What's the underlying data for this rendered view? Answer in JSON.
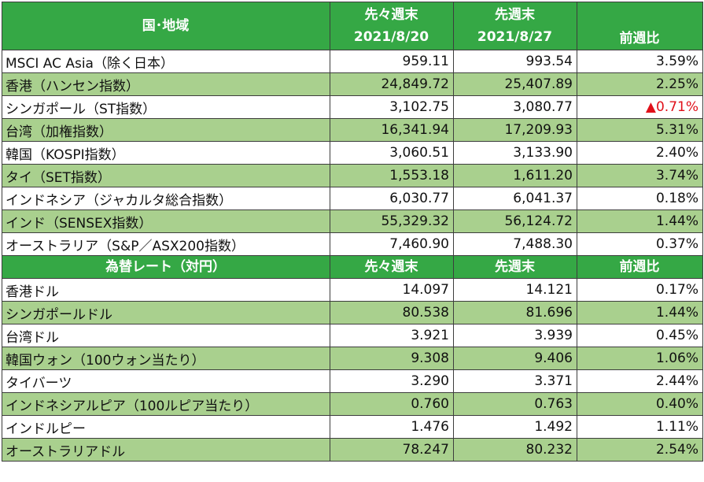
{
  "index_table": {
    "headers": {
      "region": "国･地域",
      "prev2_line1": "先々週末",
      "prev2_line2": "2021/8/20",
      "prev_line1": "先週末",
      "prev_line2": "2021/8/27",
      "change": "前週比"
    },
    "rows": [
      {
        "name": "MSCI AC Asia（除く日本）",
        "prev2": "959.11",
        "prev": "993.54",
        "change": "3.59%"
      },
      {
        "name": "香港（ハンセン指数）",
        "prev2": "24,849.72",
        "prev": "25,407.89",
        "change": "2.25%"
      },
      {
        "name": "シンガポール（ST指数）",
        "prev2": "3,102.75",
        "prev": "3,080.77",
        "change": "▲0.71%"
      },
      {
        "name": "台湾（加権指数）",
        "prev2": "16,341.94",
        "prev": "17,209.93",
        "change": "5.31%"
      },
      {
        "name": "韓国（KOSPI指数）",
        "prev2": "3,060.51",
        "prev": "3,133.90",
        "change": "2.40%"
      },
      {
        "name": "タイ（SET指数）",
        "prev2": "1,553.18",
        "prev": "1,611.20",
        "change": "3.74%"
      },
      {
        "name": "インドネシア（ジャカルタ総合指数）",
        "prev2": "6,030.77",
        "prev": "6,041.37",
        "change": "0.18%"
      },
      {
        "name": "インド（SENSEX指数）",
        "prev2": "55,329.32",
        "prev": "56,124.72",
        "change": "1.44%"
      },
      {
        "name": "オーストラリア（S&P／ASX200指数）",
        "prev2": "7,460.90",
        "prev": "7,488.30",
        "change": "0.37%"
      }
    ]
  },
  "fx_table": {
    "headers": {
      "title": "為替レート（対円）",
      "prev2": "先々週末",
      "prev": "先週末",
      "change": "前週比"
    },
    "rows": [
      {
        "name": "香港ドル",
        "prev2": "14.097",
        "prev": "14.121",
        "change": "0.17%"
      },
      {
        "name": "シンガポールドル",
        "prev2": "80.538",
        "prev": "81.696",
        "change": "1.44%"
      },
      {
        "name": "台湾ドル",
        "prev2": "3.921",
        "prev": "3.939",
        "change": "0.45%"
      },
      {
        "name": "韓国ウォン（100ウォン当たり）",
        "prev2": "9.308",
        "prev": "9.406",
        "change": "1.06%"
      },
      {
        "name": "タイバーツ",
        "prev2": "3.290",
        "prev": "3.371",
        "change": "2.44%"
      },
      {
        "name": "インドネシアルピア（100ルピア当たり）",
        "prev2": "0.760",
        "prev": "0.763",
        "change": "0.40%"
      },
      {
        "name": "インドルピー",
        "prev2": "1.476",
        "prev": "1.492",
        "change": "1.11%"
      },
      {
        "name": "オーストラリアドル",
        "prev2": "78.247",
        "prev": "80.232",
        "change": "2.54%"
      }
    ]
  },
  "colors": {
    "header_green": "#35a845",
    "band_green": "#a9d08e",
    "negative_red": "#e0101a"
  }
}
